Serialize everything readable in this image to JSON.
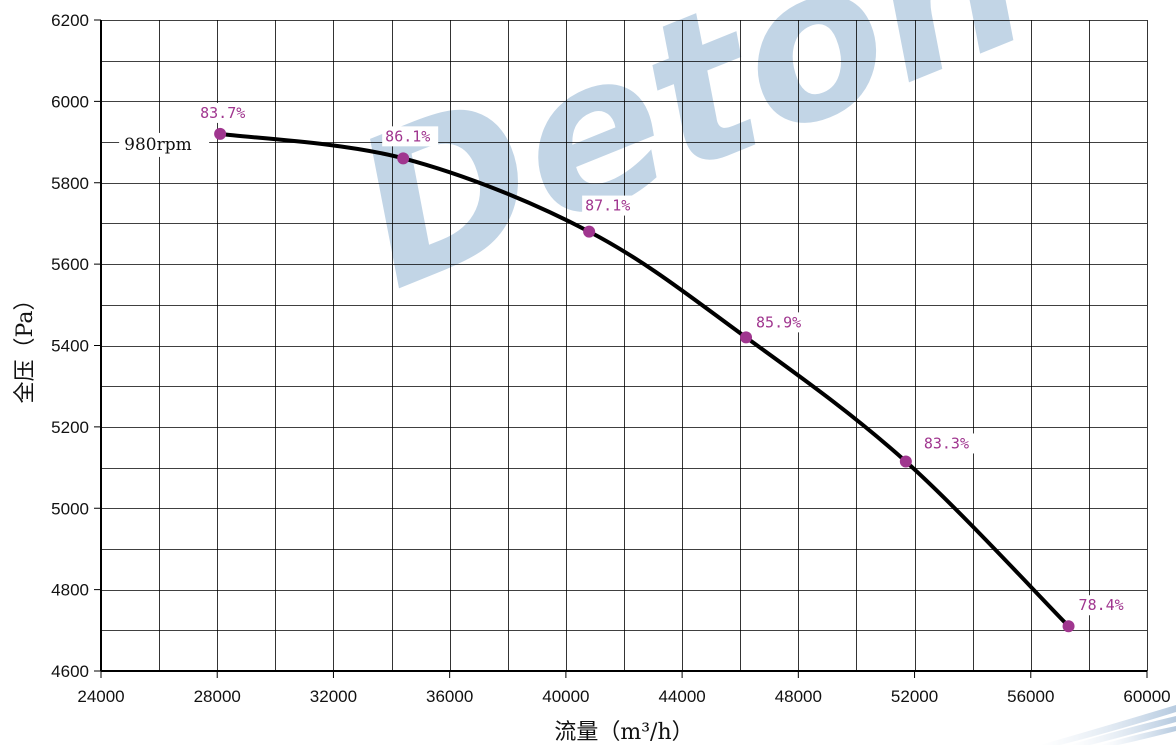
{
  "watermark": "Deton",
  "colors": {
    "curve": "#000000",
    "marker": "#a0368f",
    "label": "#a0368f",
    "grid": "#000000",
    "watermark": "#9dbcd8"
  },
  "chart_data": {
    "type": "line",
    "xlabel": "流量（m³/h）",
    "ylabel": "全压（Pa）",
    "xlim": [
      24000,
      60000
    ],
    "ylim": [
      4600,
      6200
    ],
    "x_ticks": [
      24000,
      28000,
      32000,
      36000,
      40000,
      44000,
      48000,
      52000,
      56000,
      60000
    ],
    "y_ticks": [
      4600,
      4800,
      5000,
      5200,
      5400,
      5600,
      5800,
      6000,
      6200
    ],
    "x_minor_step": 2000,
    "y_minor_step": 100,
    "grid": true,
    "series": [
      {
        "name": "980rpm",
        "x": [
          28100,
          34400,
          40800,
          46200,
          51700,
          57300
        ],
        "y": [
          5920,
          5860,
          5680,
          5420,
          5115,
          4710
        ],
        "efficiency_labels": [
          "83.7%",
          "86.1%",
          "87.1%",
          "85.9%",
          "83.3%",
          "78.4%"
        ]
      }
    ]
  }
}
